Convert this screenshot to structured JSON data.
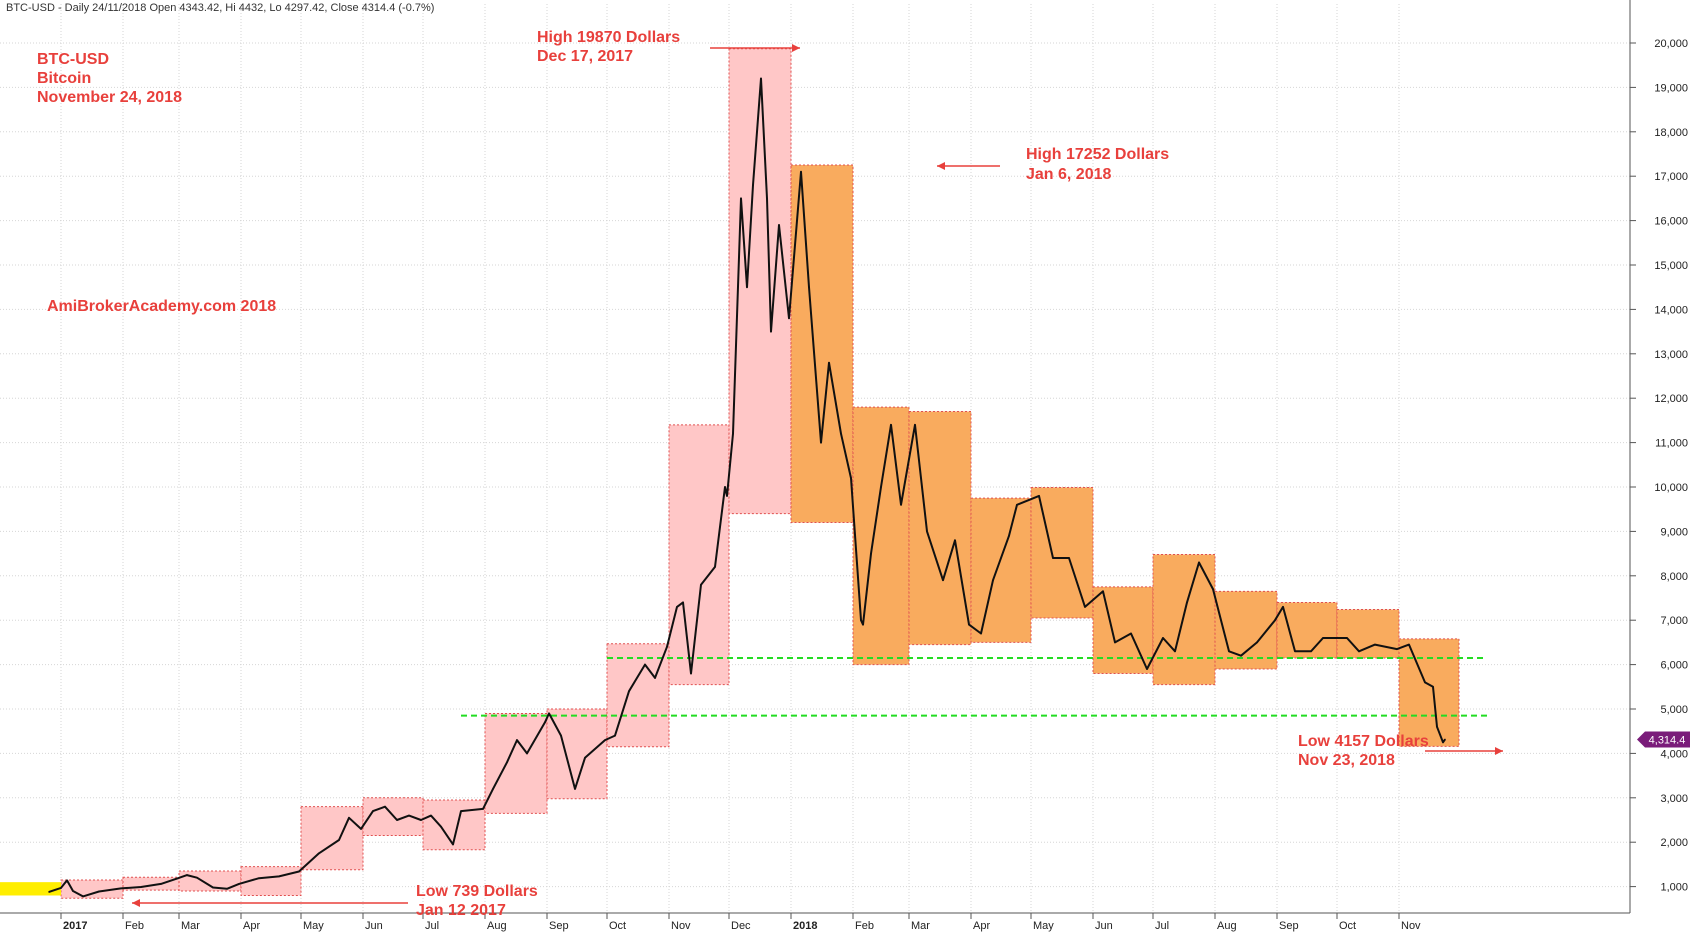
{
  "header": {
    "ticker_info": "BTC-USD - Daily 24/11/2018 Open 4343.42, Hi 4432, Lo 4297.42, Close 4314.4 (-0.7%)"
  },
  "title_block": {
    "line1": "BTC-USD",
    "line2": "Bitcoin",
    "line3": "November 24, 2018"
  },
  "watermark": "AmiBrokerAcademy.com 2018",
  "last_price_label": "4,314.4",
  "colors": {
    "text_red": "#e8403c",
    "box_2017": "#ffc7c7",
    "box_2018": "#f9ab5e",
    "support_line": "#22dd22",
    "price_tag": "#7a1c7a",
    "yellow_fill": "#ffee00"
  },
  "annotations": [
    {
      "id": "high-2017",
      "line1": "High 19870 Dollars",
      "line2": "Dec 17, 2017"
    },
    {
      "id": "high-2018",
      "line1": "High 17252 Dollars",
      "line2": "Jan 6, 2018"
    },
    {
      "id": "low-2017",
      "line1": "Low 739 Dollars",
      "line2": "Jan 12 2017"
    },
    {
      "id": "low-2018",
      "line1": "Low 4157 Dollars",
      "line2": "Nov 23, 2018"
    }
  ],
  "chart_data": {
    "type": "line",
    "title": "BTC-USD",
    "xlabel": "",
    "ylabel": "",
    "ylim": [
      400,
      20500
    ],
    "y_ticks": [
      1000,
      2000,
      3000,
      4000,
      5000,
      6000,
      7000,
      8000,
      9000,
      10000,
      11000,
      12000,
      13000,
      14000,
      15000,
      16000,
      17000,
      18000,
      19000,
      20000
    ],
    "y_tick_labels": [
      "1,000",
      "2,000",
      "3,000",
      "4,000",
      "5,000",
      "6,000",
      "7,000",
      "8,000",
      "9,000",
      "10,000",
      "11,000",
      "12,000",
      "13,000",
      "14,000",
      "15,000",
      "16,000",
      "17,000",
      "18,000",
      "19,000",
      "20,000"
    ],
    "x_ticks": [
      {
        "date": "2017-01-01",
        "label": "2017",
        "bold": true
      },
      {
        "date": "2017-02-01",
        "label": "Feb"
      },
      {
        "date": "2017-03-01",
        "label": "Mar"
      },
      {
        "date": "2017-04-01",
        "label": "Apr"
      },
      {
        "date": "2017-05-01",
        "label": "May"
      },
      {
        "date": "2017-06-01",
        "label": "Jun"
      },
      {
        "date": "2017-07-01",
        "label": "Jul"
      },
      {
        "date": "2017-08-01",
        "label": "Aug"
      },
      {
        "date": "2017-09-01",
        "label": "Sep"
      },
      {
        "date": "2017-10-01",
        "label": "Oct"
      },
      {
        "date": "2017-11-01",
        "label": "Nov"
      },
      {
        "date": "2017-12-01",
        "label": "Dec"
      },
      {
        "date": "2018-01-01",
        "label": "2018",
        "bold": true
      },
      {
        "date": "2018-02-01",
        "label": "Feb"
      },
      {
        "date": "2018-03-01",
        "label": "Mar"
      },
      {
        "date": "2018-04-01",
        "label": "Apr"
      },
      {
        "date": "2018-05-01",
        "label": "May"
      },
      {
        "date": "2018-06-01",
        "label": "Jun"
      },
      {
        "date": "2018-07-01",
        "label": "Jul"
      },
      {
        "date": "2018-08-01",
        "label": "Aug"
      },
      {
        "date": "2018-09-01",
        "label": "Sep"
      },
      {
        "date": "2018-10-01",
        "label": "Oct"
      },
      {
        "date": "2018-11-01",
        "label": "Nov"
      }
    ],
    "monthly_ranges": [
      {
        "month": "2017-01",
        "low": 739,
        "high": 1150
      },
      {
        "month": "2017-02",
        "low": 920,
        "high": 1210
      },
      {
        "month": "2017-03",
        "low": 900,
        "high": 1350
      },
      {
        "month": "2017-04",
        "low": 800,
        "high": 1450
      },
      {
        "month": "2017-05",
        "low": 1380,
        "high": 2800
      },
      {
        "month": "2017-06",
        "low": 2150,
        "high": 3000
      },
      {
        "month": "2017-07",
        "low": 1830,
        "high": 2950
      },
      {
        "month": "2017-08",
        "low": 2650,
        "high": 4900
      },
      {
        "month": "2017-09",
        "low": 2980,
        "high": 5000
      },
      {
        "month": "2017-10",
        "low": 4150,
        "high": 6470
      },
      {
        "month": "2017-11",
        "low": 5550,
        "high": 11400
      },
      {
        "month": "2017-12",
        "low": 9400,
        "high": 19870
      },
      {
        "month": "2018-01",
        "low": 9200,
        "high": 17252
      },
      {
        "month": "2018-02",
        "low": 6000,
        "high": 11800
      },
      {
        "month": "2018-03",
        "low": 6450,
        "high": 11700
      },
      {
        "month": "2018-04",
        "low": 6500,
        "high": 9750
      },
      {
        "month": "2018-05",
        "low": 7050,
        "high": 9990
      },
      {
        "month": "2018-06",
        "low": 5800,
        "high": 7750
      },
      {
        "month": "2018-07",
        "low": 5550,
        "high": 8480
      },
      {
        "month": "2018-08",
        "low": 5900,
        "high": 7650
      },
      {
        "month": "2018-09",
        "low": 6150,
        "high": 7400
      },
      {
        "month": "2018-10",
        "low": 6150,
        "high": 7240
      },
      {
        "month": "2018-11",
        "low": 4157,
        "high": 6580
      }
    ],
    "price_series": [
      [
        "2016-12-26",
        880
      ],
      [
        "2017-01-01",
        970
      ],
      [
        "2017-01-04",
        1140
      ],
      [
        "2017-01-07",
        900
      ],
      [
        "2017-01-12",
        780
      ],
      [
        "2017-01-20",
        890
      ],
      [
        "2017-01-31",
        960
      ],
      [
        "2017-02-10",
        990
      ],
      [
        "2017-02-20",
        1060
      ],
      [
        "2017-02-28",
        1180
      ],
      [
        "2017-03-05",
        1260
      ],
      [
        "2017-03-10",
        1200
      ],
      [
        "2017-03-18",
        980
      ],
      [
        "2017-03-25",
        950
      ],
      [
        "2017-03-31",
        1060
      ],
      [
        "2017-04-10",
        1190
      ],
      [
        "2017-04-20",
        1230
      ],
      [
        "2017-04-30",
        1340
      ],
      [
        "2017-05-10",
        1750
      ],
      [
        "2017-05-20",
        2050
      ],
      [
        "2017-05-25",
        2550
      ],
      [
        "2017-05-31",
        2300
      ],
      [
        "2017-06-06",
        2700
      ],
      [
        "2017-06-12",
        2800
      ],
      [
        "2017-06-18",
        2500
      ],
      [
        "2017-06-24",
        2600
      ],
      [
        "2017-06-30",
        2500
      ],
      [
        "2017-07-05",
        2600
      ],
      [
        "2017-07-10",
        2350
      ],
      [
        "2017-07-16",
        1950
      ],
      [
        "2017-07-20",
        2700
      ],
      [
        "2017-07-31",
        2750
      ],
      [
        "2017-08-05",
        3200
      ],
      [
        "2017-08-12",
        3800
      ],
      [
        "2017-08-17",
        4300
      ],
      [
        "2017-08-22",
        4000
      ],
      [
        "2017-08-31",
        4700
      ],
      [
        "2017-09-02",
        4900
      ],
      [
        "2017-09-08",
        4400
      ],
      [
        "2017-09-15",
        3200
      ],
      [
        "2017-09-20",
        3900
      ],
      [
        "2017-09-30",
        4300
      ],
      [
        "2017-10-05",
        4400
      ],
      [
        "2017-10-12",
        5400
      ],
      [
        "2017-10-20",
        6000
      ],
      [
        "2017-10-25",
        5700
      ],
      [
        "2017-10-31",
        6400
      ],
      [
        "2017-11-05",
        7300
      ],
      [
        "2017-11-08",
        7400
      ],
      [
        "2017-11-12",
        5800
      ],
      [
        "2017-11-17",
        7800
      ],
      [
        "2017-11-24",
        8200
      ],
      [
        "2017-11-29",
        10000
      ],
      [
        "2017-11-30",
        9800
      ],
      [
        "2017-12-03",
        11200
      ],
      [
        "2017-12-07",
        16500
      ],
      [
        "2017-12-10",
        14500
      ],
      [
        "2017-12-13",
        16800
      ],
      [
        "2017-12-17",
        19200
      ],
      [
        "2017-12-20",
        16500
      ],
      [
        "2017-12-22",
        13500
      ],
      [
        "2017-12-26",
        15900
      ],
      [
        "2017-12-31",
        13800
      ],
      [
        "2018-01-06",
        17100
      ],
      [
        "2018-01-10",
        14500
      ],
      [
        "2018-01-16",
        11000
      ],
      [
        "2018-01-20",
        12800
      ],
      [
        "2018-01-26",
        11200
      ],
      [
        "2018-01-31",
        10200
      ],
      [
        "2018-02-05",
        7000
      ],
      [
        "2018-02-06",
        6900
      ],
      [
        "2018-02-10",
        8500
      ],
      [
        "2018-02-15",
        10000
      ],
      [
        "2018-02-20",
        11400
      ],
      [
        "2018-02-25",
        9600
      ],
      [
        "2018-03-04",
        11400
      ],
      [
        "2018-03-10",
        9000
      ],
      [
        "2018-03-18",
        7900
      ],
      [
        "2018-03-24",
        8800
      ],
      [
        "2018-03-31",
        6900
      ],
      [
        "2018-04-06",
        6700
      ],
      [
        "2018-04-12",
        7900
      ],
      [
        "2018-04-20",
        8900
      ],
      [
        "2018-04-24",
        9600
      ],
      [
        "2018-05-05",
        9800
      ],
      [
        "2018-05-12",
        8400
      ],
      [
        "2018-05-20",
        8400
      ],
      [
        "2018-05-28",
        7300
      ],
      [
        "2018-06-06",
        7650
      ],
      [
        "2018-06-12",
        6500
      ],
      [
        "2018-06-20",
        6700
      ],
      [
        "2018-06-28",
        5900
      ],
      [
        "2018-07-06",
        6600
      ],
      [
        "2018-07-12",
        6300
      ],
      [
        "2018-07-18",
        7400
      ],
      [
        "2018-07-24",
        8300
      ],
      [
        "2018-07-31",
        7700
      ],
      [
        "2018-08-08",
        6300
      ],
      [
        "2018-08-14",
        6200
      ],
      [
        "2018-08-22",
        6500
      ],
      [
        "2018-08-31",
        7000
      ],
      [
        "2018-09-04",
        7300
      ],
      [
        "2018-09-10",
        6300
      ],
      [
        "2018-09-18",
        6300
      ],
      [
        "2018-09-24",
        6600
      ],
      [
        "2018-09-30",
        6600
      ],
      [
        "2018-10-06",
        6600
      ],
      [
        "2018-10-12",
        6300
      ],
      [
        "2018-10-20",
        6450
      ],
      [
        "2018-10-31",
        6350
      ],
      [
        "2018-11-06",
        6450
      ],
      [
        "2018-11-14",
        5600
      ],
      [
        "2018-11-18",
        5500
      ],
      [
        "2018-11-20",
        4600
      ],
      [
        "2018-11-23",
        4250
      ],
      [
        "2018-11-24",
        4314.4
      ]
    ],
    "support_levels": [
      {
        "value": 6150,
        "from": "2017-10-01",
        "to": "2018-12-15"
      },
      {
        "value": 4850,
        "from": "2017-07-20",
        "to": "2018-12-15"
      }
    ],
    "grid": true,
    "log_scale": false
  }
}
